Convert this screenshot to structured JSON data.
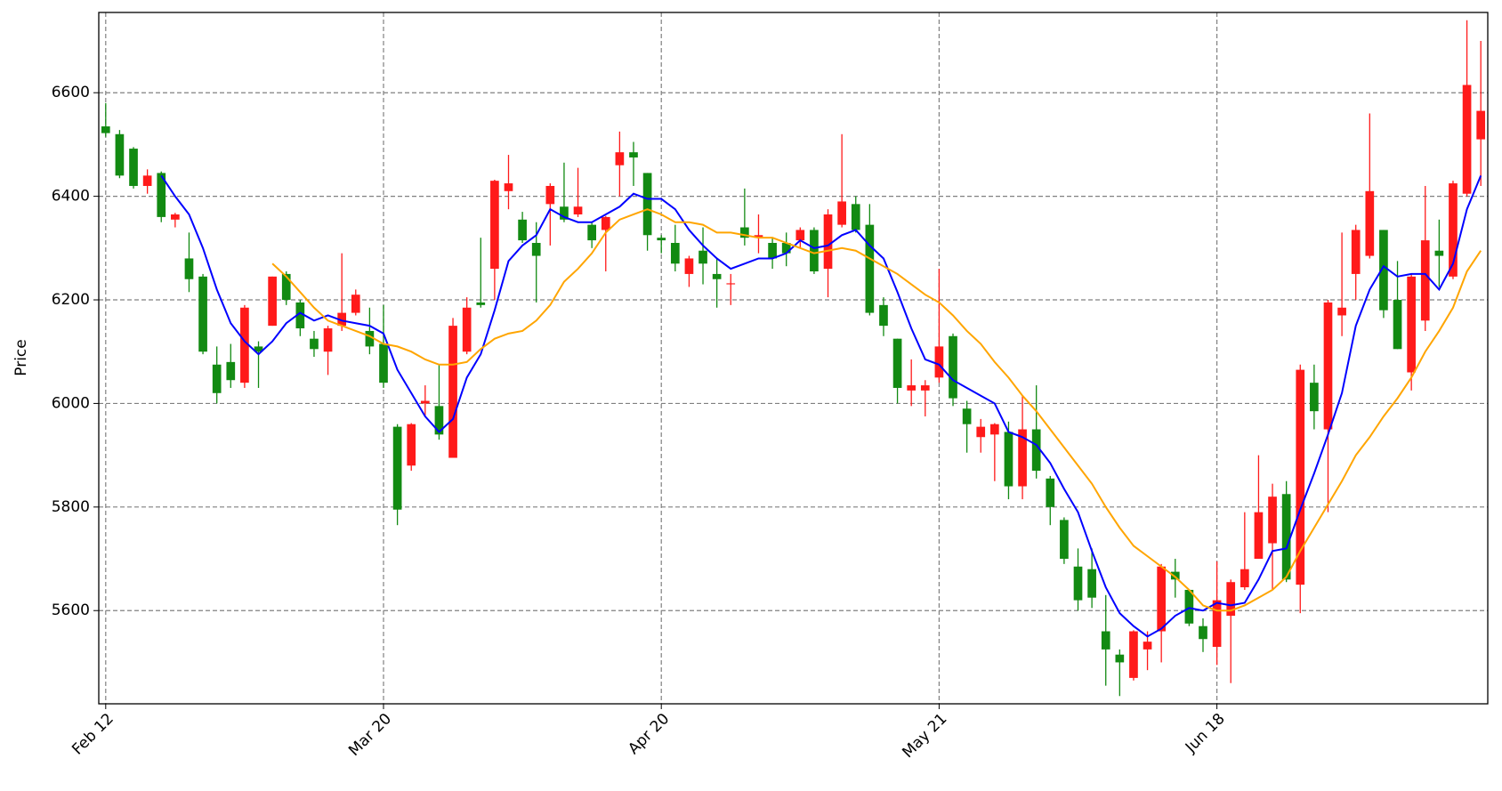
{
  "chart_data": {
    "type": "candlestick",
    "ylabel": "Price",
    "categories": [
      "Feb 12",
      null,
      null,
      null,
      null,
      null,
      null,
      null,
      null,
      null,
      null,
      null,
      null,
      null,
      null,
      null,
      null,
      null,
      null,
      null,
      "Mar 20",
      null,
      null,
      null,
      null,
      null,
      null,
      null,
      null,
      null,
      null,
      null,
      null,
      null,
      null,
      null,
      null,
      null,
      null,
      null,
      "Apr 20",
      null,
      null,
      null,
      null,
      null,
      null,
      null,
      null,
      null,
      null,
      null,
      null,
      null,
      null,
      null,
      null,
      null,
      null,
      null,
      "May 21",
      null,
      null,
      null,
      null,
      null,
      null,
      null,
      null,
      null,
      null,
      null,
      null,
      null,
      null,
      null,
      null,
      null,
      null,
      null,
      "Jun 18",
      null,
      null,
      null,
      null,
      null,
      null,
      null,
      null,
      null,
      null,
      null,
      null,
      null,
      null,
      null,
      null,
      null,
      null,
      null
    ],
    "open": [
      6535,
      6520,
      6492,
      6420,
      6445,
      6355,
      6280,
      6245,
      6075,
      6080,
      6040,
      6110,
      6150,
      6250,
      6195,
      6125,
      6100,
      6150,
      6175,
      6140,
      6115,
      5955,
      5880,
      6000,
      5995,
      5895,
      6100,
      6195,
      6260,
      6410,
      6355,
      6310,
      6385,
      6380,
      6365,
      6345,
      6335,
      6460,
      6485,
      6445,
      6320,
      6310,
      6250,
      6295,
      6250,
      6230,
      6340,
      6320,
      6310,
      6310,
      6315,
      6335,
      6260,
      6345,
      6385,
      6345,
      6190,
      6125,
      6025,
      6025,
      6050,
      6130,
      5990,
      5935,
      5940,
      5945,
      5840,
      5950,
      5855,
      5775,
      5685,
      5680,
      5560,
      5515,
      5470,
      5525,
      5560,
      5675,
      5640,
      5570,
      5530,
      5590,
      5645,
      5700,
      5730,
      5825,
      5650,
      6040,
      5950,
      6170,
      6250,
      6285,
      6335,
      6200,
      6060,
      6160,
      6295,
      6245,
      6405,
      6510
    ],
    "high": [
      6580,
      6528,
      6495,
      6452,
      6448,
      6368,
      6330,
      6250,
      6110,
      6115,
      6190,
      6120,
      6245,
      6255,
      6200,
      6140,
      6150,
      6290,
      6220,
      6185,
      6190,
      5960,
      5962,
      6035,
      6075,
      6165,
      6205,
      6320,
      6432,
      6480,
      6370,
      6350,
      6425,
      6465,
      6455,
      6350,
      6362,
      6525,
      6505,
      6445,
      6325,
      6345,
      6285,
      6340,
      6280,
      6250,
      6415,
      6365,
      6320,
      6330,
      6340,
      6340,
      6375,
      6520,
      6400,
      6385,
      6205,
      6125,
      6085,
      6045,
      6260,
      6135,
      6005,
      5970,
      5962,
      5965,
      6015,
      6035,
      5860,
      5780,
      5720,
      5720,
      5630,
      5525,
      5562,
      5560,
      5690,
      5700,
      5640,
      5585,
      5695,
      5660,
      5790,
      5900,
      5845,
      5850,
      6075,
      6075,
      6200,
      6330,
      6345,
      6560,
      6335,
      6275,
      6250,
      6420,
      6355,
      6430,
      6740,
      6700
    ],
    "low": [
      6515,
      6435,
      6415,
      6405,
      6350,
      6340,
      6215,
      6095,
      6000,
      6030,
      6030,
      6030,
      6150,
      6190,
      6130,
      6090,
      6055,
      6140,
      6170,
      6095,
      6030,
      5765,
      5870,
      5975,
      5930,
      5895,
      6095,
      6185,
      6200,
      6375,
      6310,
      6195,
      6305,
      6350,
      6360,
      6300,
      6255,
      6400,
      6420,
      6295,
      6290,
      6255,
      6225,
      6230,
      6185,
      6190,
      6305,
      6290,
      6260,
      6265,
      6300,
      6250,
      6205,
      6340,
      6330,
      6170,
      6130,
      6000,
      5995,
      5975,
      6040,
      5995,
      5905,
      5905,
      5850,
      5815,
      5815,
      5855,
      5765,
      5690,
      5600,
      5605,
      5455,
      5435,
      5465,
      5485,
      5500,
      5625,
      5570,
      5520,
      5495,
      5460,
      5640,
      5700,
      5640,
      5655,
      5595,
      5950,
      5790,
      6130,
      6200,
      6280,
      6165,
      6105,
      6025,
      6140,
      6225,
      6240,
      6400,
      6420
    ],
    "close": [
      6522,
      6440,
      6420,
      6440,
      6360,
      6365,
      6240,
      6100,
      6020,
      6045,
      6185,
      6100,
      6245,
      6200,
      6145,
      6105,
      6145,
      6175,
      6210,
      6110,
      6040,
      5795,
      5960,
      6005,
      5940,
      6150,
      6185,
      6190,
      6430,
      6425,
      6315,
      6285,
      6420,
      6355,
      6380,
      6315,
      6360,
      6485,
      6475,
      6325,
      6315,
      6270,
      6280,
      6270,
      6240,
      6232,
      6320,
      6325,
      6280,
      6290,
      6335,
      6255,
      6365,
      6390,
      6335,
      6175,
      6150,
      6030,
      6035,
      6035,
      6110,
      6010,
      5960,
      5955,
      5960,
      5840,
      5950,
      5870,
      5800,
      5700,
      5620,
      5625,
      5525,
      5500,
      5560,
      5540,
      5685,
      5660,
      5575,
      5545,
      5620,
      5655,
      5680,
      5790,
      5820,
      5660,
      6065,
      5985,
      6195,
      6185,
      6335,
      6410,
      6180,
      6105,
      6245,
      6315,
      6285,
      6425,
      6615,
      6565
    ],
    "up_color": "#ff1a1a",
    "down_color": "#128a12",
    "lines": [
      {
        "color": "#0000ff",
        "values": [
          null,
          null,
          null,
          null,
          6440,
          6400,
          6365,
          6300,
          6220,
          6155,
          6120,
          6095,
          6120,
          6155,
          6175,
          6160,
          6170,
          6160,
          6155,
          6150,
          6135,
          6065,
          6020,
          5975,
          5945,
          5970,
          6050,
          6095,
          6180,
          6275,
          6305,
          6325,
          6375,
          6360,
          6350,
          6350,
          6365,
          6380,
          6405,
          6395,
          6395,
          6375,
          6335,
          6305,
          6280,
          6260,
          6270,
          6280,
          6280,
          6290,
          6315,
          6300,
          6305,
          6325,
          6335,
          6305,
          6280,
          6215,
          6145,
          6085,
          6075,
          6045,
          6030,
          6015,
          6000,
          5945,
          5935,
          5920,
          5885,
          5835,
          5790,
          5715,
          5645,
          5595,
          5570,
          5550,
          5565,
          5590,
          5605,
          5600,
          5615,
          5610,
          5615,
          5660,
          5715,
          5720,
          5795,
          5865,
          5940,
          6020,
          6150,
          6220,
          6265,
          6245,
          6250,
          6250,
          6220,
          6270,
          6375,
          6440
        ]
      },
      {
        "color": "#ffa500",
        "values": [
          null,
          null,
          null,
          null,
          null,
          null,
          null,
          null,
          null,
          null,
          null,
          null,
          6270,
          6245,
          6215,
          6185,
          6160,
          6150,
          6140,
          6130,
          6115,
          6110,
          6100,
          6085,
          6075,
          6075,
          6080,
          6105,
          6125,
          6135,
          6140,
          6160,
          6190,
          6235,
          6260,
          6290,
          6330,
          6355,
          6365,
          6375,
          6365,
          6350,
          6350,
          6345,
          6330,
          6330,
          6325,
          6320,
          6320,
          6310,
          6300,
          6290,
          6295,
          6300,
          6295,
          6280,
          6265,
          6250,
          6230,
          6210,
          6195,
          6170,
          6140,
          6115,
          6080,
          6050,
          6015,
          5985,
          5950,
          5915,
          5880,
          5845,
          5800,
          5760,
          5725,
          5705,
          5685,
          5665,
          5640,
          5610,
          5600,
          5600,
          5610,
          5625,
          5640,
          5665,
          5715,
          5760,
          5805,
          5850,
          5900,
          5935,
          5975,
          6010,
          6050,
          6100,
          6140,
          6185,
          6255,
          6295
        ]
      }
    ],
    "ylim": [
      5420,
      6755
    ],
    "yticks": [
      5600,
      5800,
      6000,
      6200,
      6400,
      6600
    ],
    "grid": true
  }
}
